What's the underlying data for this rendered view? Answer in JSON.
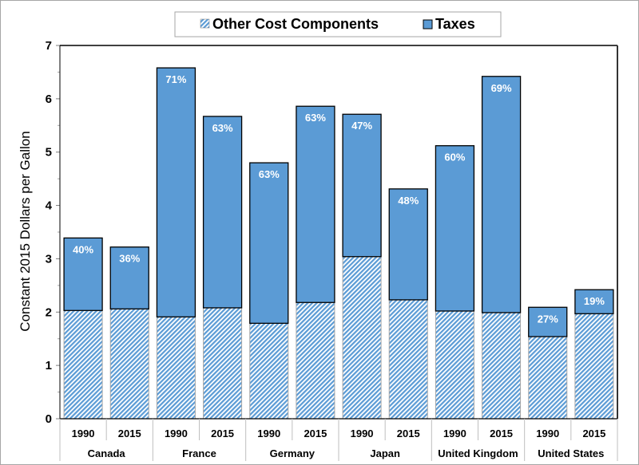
{
  "chart_data": {
    "type": "bar",
    "stacked": true,
    "title": "",
    "xlabel": "",
    "ylabel": "Constant  2015 Dollars per Gallon",
    "ylim": [
      0,
      7
    ],
    "yticks": [
      "0",
      "1",
      "2",
      "3",
      "4",
      "5",
      "6",
      "7"
    ],
    "grid": false,
    "legend": {
      "placement": "top-center",
      "entries": [
        "Other Cost Components",
        "Taxes"
      ]
    },
    "groups": [
      "Canada",
      "France",
      "Germany",
      "Japan",
      "United Kingdom",
      "United States"
    ],
    "categories": [
      {
        "group": "Canada",
        "year": "1990"
      },
      {
        "group": "Canada",
        "year": "2015"
      },
      {
        "group": "France",
        "year": "1990"
      },
      {
        "group": "France",
        "year": "2015"
      },
      {
        "group": "Germany",
        "year": "1990"
      },
      {
        "group": "Germany",
        "year": "2015"
      },
      {
        "group": "Japan",
        "year": "1990"
      },
      {
        "group": "Japan",
        "year": "2015"
      },
      {
        "group": "United Kingdom",
        "year": "1990"
      },
      {
        "group": "United Kingdom",
        "year": "2015"
      },
      {
        "group": "United States",
        "year": "1990"
      },
      {
        "group": "United States",
        "year": "2015"
      }
    ],
    "series": [
      {
        "name": "Other Cost Components",
        "color": "#9dc3e6",
        "pattern": "diagonal-hatch",
        "values": [
          2.03,
          2.06,
          1.91,
          2.08,
          1.79,
          2.18,
          3.04,
          2.23,
          2.02,
          1.99,
          1.54,
          1.97
        ]
      },
      {
        "name": "Taxes",
        "color": "#5b9bd5",
        "values": [
          1.36,
          1.16,
          4.67,
          3.59,
          3.01,
          3.68,
          2.67,
          2.08,
          3.1,
          4.43,
          0.55,
          0.45
        ]
      }
    ],
    "totals": [
      3.39,
      3.22,
      6.58,
      5.67,
      4.8,
      5.86,
      5.71,
      4.31,
      5.12,
      6.42,
      2.09,
      2.42
    ],
    "data_labels": [
      "40%",
      "36%",
      "71%",
      "63%",
      "63%",
      "63%",
      "47%",
      "48%",
      "60%",
      "69%",
      "27%",
      "19%"
    ]
  }
}
